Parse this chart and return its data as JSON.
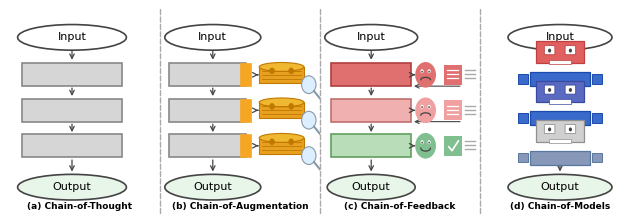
{
  "bg_color": "#ffffff",
  "title_a": "(a) Chain-of-Thought",
  "title_b": "(b) Chain-of-Augmentation",
  "title_c": "(c) Chain-of-Feedback",
  "title_d": "(d) Chain-of-Models",
  "output_color": "#e8f5e9",
  "box_gray": "#d6d6d6",
  "box_gray_edge": "#888888",
  "box_red_dark_fc": "#e07070",
  "box_red_dark_ec": "#b04040",
  "box_red_light_fc": "#f0b0b0",
  "box_red_light_ec": "#c07070",
  "box_green_fc": "#b8ddb8",
  "box_green_ec": "#60a060",
  "orange_accent": "#f5a623",
  "orange_db": "#e8a020",
  "orange_db_top": "#f0b830",
  "orange_db_line": "#c07800",
  "mag_glass_fc": "#ddeeff",
  "mag_glass_ec": "#8899aa",
  "arrow_color": "#444444",
  "divider_color": "#aaaaaa",
  "emoji_red_dark": "#e07070",
  "emoji_red_light": "#f0a0a0",
  "emoji_green": "#80c090",
  "robot1_head": "#e06060",
  "robot1_body": "#3060c0",
  "robot2_head": "#5060c0",
  "robot2_body": "#3060c0",
  "robot3_head": "#c0c0c0",
  "robot3_body": "#8090b0"
}
